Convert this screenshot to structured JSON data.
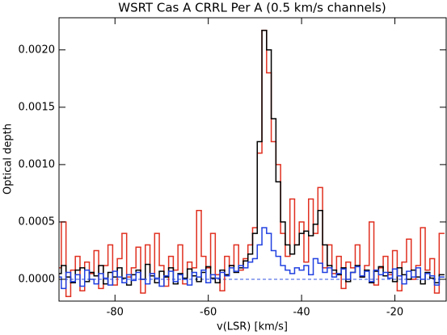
{
  "chart_data": {
    "type": "step",
    "title": "WSRT Cas A CRRL Per A (0.5 km/s channels)",
    "x_label": "v(LSR) [km/s]",
    "y_label": "Optical depth",
    "xlim": [
      -92,
      -9
    ],
    "ylim": [
      -0.00019,
      0.00228
    ],
    "xticks": [
      -80,
      -60,
      -40,
      -20
    ],
    "yticks": [
      {
        "value": 0,
        "label": "0.0000"
      },
      {
        "value": 0.0005,
        "label": "0.0005"
      },
      {
        "value": 0.001,
        "label": "0.0010"
      },
      {
        "value": 0.0015,
        "label": "0.0015"
      },
      {
        "value": 0.002,
        "label": "0.0020"
      }
    ],
    "hline": {
      "value": 0,
      "color": "#3050e0",
      "dashed": true
    },
    "x": [
      -92,
      -91,
      -90,
      -89,
      -88,
      -87,
      -86,
      -85,
      -84,
      -83,
      -82,
      -81,
      -80,
      -79,
      -78,
      -77,
      -76,
      -75,
      -74,
      -73,
      -72,
      -71,
      -70,
      -69,
      -68,
      -67,
      -66,
      -65,
      -64,
      -63,
      -62,
      -61,
      -60,
      -59,
      -58,
      -57,
      -56,
      -55,
      -54,
      -53,
      -52,
      -51,
      -50,
      -49,
      -48,
      -47,
      -46,
      -45,
      -44,
      -43,
      -42,
      -41,
      -40,
      -39,
      -38,
      -37,
      -36,
      -35,
      -34,
      -33,
      -32,
      -31,
      -30,
      -29,
      -28,
      -27,
      -26,
      -25,
      -24,
      -23,
      -22,
      -21,
      -20,
      -19,
      -18,
      -17,
      -16,
      -15,
      -14,
      -13,
      -12,
      -11,
      -10
    ],
    "series": [
      {
        "color": "#e03020",
        "values": [
          0.0001,
          0.0005,
          -0.00015,
          8e-05,
          0.0002,
          -0.0001,
          0.00015,
          5e-05,
          0.00025,
          -8e-05,
          0.00012,
          0.0003,
          -5e-05,
          0.00018,
          0.0004,
          2e-05,
          0.0001,
          0.00028,
          -0.00012,
          0.0003,
          5e-05,
          0.0004,
          0.00012,
          -6e-05,
          0.0002,
          8e-05,
          0.0003,
          -4e-05,
          0.00015,
          0.0001,
          0.0006,
          0.0002,
          0.0001,
          0.0004,
          4e-05,
          -0.0001,
          0.0002,
          0.00012,
          0.0003,
          8e-05,
          0.00018,
          0.0003,
          0.00045,
          0.0011,
          0.00217,
          0.0018,
          0.0012,
          0.001,
          0.0004,
          0.0002,
          0.0007,
          0.0003,
          0.0005,
          0.00015,
          0.0007,
          0.0004,
          0.0008,
          0.0001,
          0.0003,
          5e-05,
          0.0002,
          -8e-05,
          0.00015,
          0.0001,
          0.0003,
          2e-05,
          0.00012,
          0.0005,
          -5e-05,
          0.0001,
          0.0002,
          4e-05,
          0.00025,
          -0.0001,
          0.00015,
          0.00035,
          0.0,
          0.00012,
          0.00045,
          8e-05,
          0.00018,
          -0.00012,
          0.0004
        ]
      },
      {
        "color": "#000000",
        "values": [
          5e-05,
          0.00012,
          2e-05,
          -3e-05,
          8e-05,
          0.0001,
          -2e-05,
          6e-05,
          3e-05,
          0.00012,
          -4e-05,
          6e-05,
          2e-05,
          0.0001,
          1e-05,
          -5e-05,
          4e-05,
          8e-05,
          0.0,
          0.00013,
          3e-05,
          -3e-05,
          7e-05,
          2e-05,
          0.0001,
          -4e-05,
          5e-05,
          1e-05,
          9e-05,
          3e-05,
          -2e-05,
          6e-05,
          0.00011,
          1e-05,
          -3e-05,
          8e-05,
          4e-05,
          0.00012,
          6e-05,
          0.0001,
          0.00016,
          0.00022,
          0.0004,
          0.0012,
          0.00217,
          0.002,
          0.0014,
          0.00085,
          0.0005,
          0.0003,
          0.00022,
          0.0003,
          0.0004,
          0.00042,
          0.00038,
          0.00048,
          0.0006,
          0.0003,
          0.00012,
          8e-05,
          4e-05,
          0.0001,
          -2e-05,
          6e-05,
          0.00012,
          2e-05,
          8e-05,
          -3e-05,
          7e-05,
          0.00011,
          3e-05,
          6e-05,
          -2e-05,
          0.0001,
          4e-05,
          0.0,
          8e-05,
          2e-05,
          -4e-05,
          6e-05,
          1e-05,
          -3e-05,
          4e-05
        ]
      },
      {
        "color": "#2040e0",
        "values": [
          2e-05,
          -8e-05,
          6e-05,
          -2e-05,
          4e-05,
          -6e-05,
          8e-05,
          0.0,
          -4e-05,
          5e-05,
          1e-05,
          -5e-05,
          7e-05,
          2e-05,
          -3e-05,
          4e-05,
          -1e-05,
          6e-05,
          0.0,
          -4e-05,
          5e-05,
          1e-05,
          -6e-05,
          3e-05,
          7e-05,
          -2e-05,
          4e-05,
          0.0,
          -5e-05,
          6e-05,
          2e-05,
          8e-05,
          -3e-05,
          4e-05,
          1e-05,
          6e-05,
          3e-05,
          0.0001,
          7e-05,
          0.00012,
          0.0001,
          0.00015,
          0.00018,
          0.0003,
          0.00045,
          0.0004,
          0.00025,
          0.0002,
          0.00012,
          8e-05,
          5e-05,
          0.0001,
          8e-05,
          0.00012,
          4e-05,
          0.00018,
          0.00014,
          6e-05,
          0.0001,
          2e-05,
          5e-05,
          9e-05,
          0.0,
          6e-05,
          0.00011,
          3e-05,
          7e-05,
          -2e-05,
          8e-05,
          4e-05,
          6e-05,
          1e-05,
          9e-05,
          3e-05,
          -4e-05,
          7e-05,
          2e-05,
          0.0001,
          0.0,
          5e-05,
          3e-05,
          -5e-05,
          2e-05
        ]
      }
    ]
  }
}
